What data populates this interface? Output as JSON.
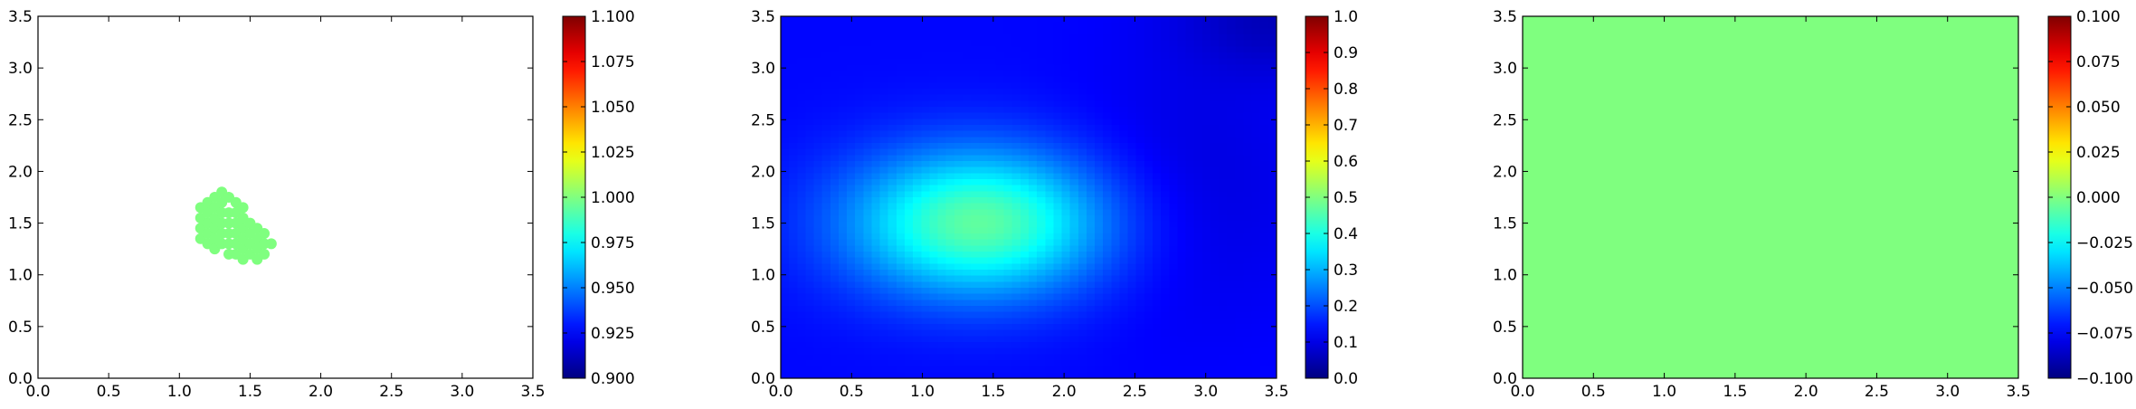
{
  "chart_data": [
    {
      "type": "scatter",
      "title": "",
      "xlabel": "",
      "ylabel": "",
      "xlim": [
        0,
        3.5
      ],
      "ylim": [
        0,
        3.5
      ],
      "xticks": [
        "0.0",
        "0.5",
        "1.0",
        "1.5",
        "2.0",
        "2.5",
        "3.0",
        "3.5"
      ],
      "yticks": [
        "0.0",
        "0.5",
        "1.0",
        "1.5",
        "2.0",
        "2.5",
        "3.0",
        "3.5"
      ],
      "colormap": "jet",
      "marker_color": "#7fff7f",
      "points": [
        [
          1.15,
          1.35
        ],
        [
          1.15,
          1.45
        ],
        [
          1.15,
          1.55
        ],
        [
          1.15,
          1.65
        ],
        [
          1.2,
          1.3
        ],
        [
          1.2,
          1.4
        ],
        [
          1.2,
          1.5
        ],
        [
          1.2,
          1.6
        ],
        [
          1.2,
          1.7
        ],
        [
          1.25,
          1.25
        ],
        [
          1.25,
          1.35
        ],
        [
          1.25,
          1.45
        ],
        [
          1.25,
          1.55
        ],
        [
          1.25,
          1.65
        ],
        [
          1.25,
          1.75
        ],
        [
          1.3,
          1.3
        ],
        [
          1.3,
          1.4
        ],
        [
          1.3,
          1.5
        ],
        [
          1.3,
          1.6
        ],
        [
          1.3,
          1.7
        ],
        [
          1.3,
          1.8
        ],
        [
          1.35,
          1.2
        ],
        [
          1.35,
          1.3
        ],
        [
          1.35,
          1.4
        ],
        [
          1.35,
          1.5
        ],
        [
          1.35,
          1.6
        ],
        [
          1.35,
          1.75
        ],
        [
          1.4,
          1.2
        ],
        [
          1.4,
          1.3
        ],
        [
          1.4,
          1.4
        ],
        [
          1.4,
          1.5
        ],
        [
          1.4,
          1.6
        ],
        [
          1.4,
          1.7
        ],
        [
          1.45,
          1.15
        ],
        [
          1.45,
          1.25
        ],
        [
          1.45,
          1.35
        ],
        [
          1.45,
          1.45
        ],
        [
          1.45,
          1.55
        ],
        [
          1.45,
          1.65
        ],
        [
          1.5,
          1.2
        ],
        [
          1.5,
          1.3
        ],
        [
          1.5,
          1.4
        ],
        [
          1.5,
          1.5
        ],
        [
          1.55,
          1.15
        ],
        [
          1.55,
          1.25
        ],
        [
          1.55,
          1.35
        ],
        [
          1.55,
          1.45
        ],
        [
          1.6,
          1.2
        ],
        [
          1.6,
          1.3
        ],
        [
          1.6,
          1.4
        ],
        [
          1.65,
          1.3
        ]
      ],
      "colorbar": {
        "min": 0.9,
        "max": 1.1,
        "ticks": [
          "0.900",
          "0.925",
          "0.950",
          "0.975",
          "1.000",
          "1.025",
          "1.050",
          "1.075",
          "1.100"
        ]
      }
    },
    {
      "type": "heatmap",
      "title": "",
      "xlabel": "",
      "ylabel": "",
      "xlim": [
        0,
        3.5
      ],
      "ylim": [
        0,
        3.5
      ],
      "xticks": [
        "0.0",
        "0.5",
        "1.0",
        "1.5",
        "2.0",
        "2.5",
        "3.0",
        "3.5"
      ],
      "yticks": [
        "0.0",
        "0.5",
        "1.0",
        "1.5",
        "2.0",
        "2.5",
        "3.0",
        "3.5"
      ],
      "colormap": "jet",
      "field": {
        "background_value": 0.13,
        "peak_center": [
          1.4,
          1.5
        ],
        "peak_value": 0.34,
        "peak_sigma": [
          0.65,
          0.5
        ],
        "dark_regions": [
          {
            "center": [
              2.9,
              1.8
            ],
            "value": -0.04,
            "sigma": [
              0.6,
              0.9
            ]
          },
          {
            "center": [
              3.5,
              3.5
            ],
            "value": -0.07,
            "sigma": [
              0.5,
              0.4
            ]
          }
        ]
      },
      "colorbar": {
        "min": 0.0,
        "max": 1.0,
        "ticks": [
          "0.0",
          "0.1",
          "0.2",
          "0.3",
          "0.4",
          "0.5",
          "0.6",
          "0.7",
          "0.8",
          "0.9",
          "1.0"
        ]
      }
    },
    {
      "type": "heatmap",
      "title": "",
      "xlabel": "",
      "ylabel": "",
      "xlim": [
        0,
        3.5
      ],
      "ylim": [
        0,
        3.5
      ],
      "xticks": [
        "0.0",
        "0.5",
        "1.0",
        "1.5",
        "2.0",
        "2.5",
        "3.0",
        "3.5"
      ],
      "yticks": [
        "0.0",
        "0.5",
        "1.0",
        "1.5",
        "2.0",
        "2.5",
        "3.0",
        "3.5"
      ],
      "colormap": "jet",
      "uniform_value": 0.0,
      "fill_color": "#7fff7f",
      "colorbar": {
        "min": -0.1,
        "max": 0.1,
        "ticks": [
          "−0.100",
          "−0.075",
          "−0.050",
          "−0.025",
          "0.000",
          "0.025",
          "0.050",
          "0.075",
          "0.100"
        ]
      }
    }
  ]
}
